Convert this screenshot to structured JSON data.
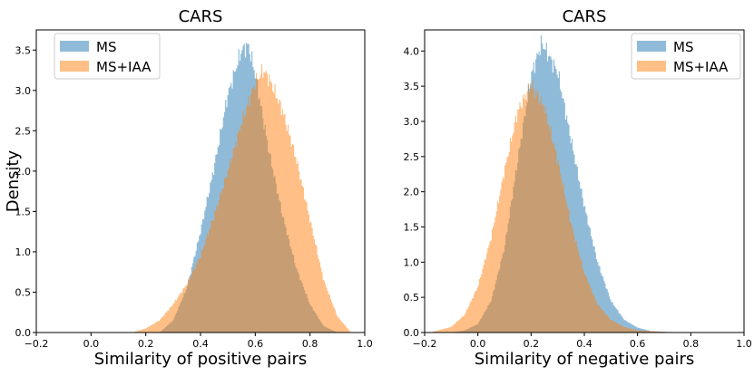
{
  "chart_data": [
    {
      "type": "histogram",
      "title": "CARS",
      "xlabel": "Similarity of positive pairs",
      "ylabel": "Density",
      "xlim": [
        -0.2,
        1.0
      ],
      "ylim": [
        0,
        3.75
      ],
      "xticks": [
        -0.2,
        0.0,
        0.2,
        0.4,
        0.6,
        0.8,
        1.0
      ],
      "xtick_labels": [
        "−0.2",
        "0.0",
        "0.2",
        "0.4",
        "0.6",
        "0.8",
        "1.0"
      ],
      "yticks": [
        0.0,
        0.5,
        1.0,
        1.5,
        2.0,
        2.5,
        3.0,
        3.5
      ],
      "ytick_labels": [
        "0.0",
        "0.5",
        "1.0",
        "1.5",
        "2.0",
        "2.5",
        "3.0",
        "3.5"
      ],
      "legend_position": "top-left",
      "series": [
        {
          "name": "MS",
          "color": "#1f77b4",
          "alpha": 0.5,
          "x": [
            0.25,
            0.3,
            0.35,
            0.4,
            0.45,
            0.5,
            0.55,
            0.575,
            0.6,
            0.65,
            0.7,
            0.75,
            0.8,
            0.85,
            0.9
          ],
          "density": [
            0.0,
            0.15,
            0.55,
            1.25,
            2.05,
            2.95,
            3.5,
            3.56,
            3.2,
            2.25,
            1.45,
            0.8,
            0.35,
            0.08,
            0.0
          ]
        },
        {
          "name": "MS+IAA",
          "color": "#ff7f0e",
          "alpha": 0.5,
          "x": [
            0.15,
            0.2,
            0.25,
            0.3,
            0.35,
            0.4,
            0.45,
            0.5,
            0.55,
            0.6,
            0.63,
            0.65,
            0.7,
            0.75,
            0.8,
            0.85,
            0.9,
            0.95
          ],
          "density": [
            0.0,
            0.05,
            0.15,
            0.35,
            0.6,
            0.95,
            1.45,
            2.0,
            2.6,
            3.1,
            3.25,
            3.15,
            2.75,
            2.15,
            1.4,
            0.65,
            0.2,
            0.0
          ]
        }
      ]
    },
    {
      "type": "histogram",
      "title": "CARS",
      "xlabel": "Similarity of negative pairs",
      "ylabel": "",
      "xlim": [
        -0.2,
        1.0
      ],
      "ylim": [
        0,
        4.3
      ],
      "xticks": [
        -0.2,
        0.0,
        0.2,
        0.4,
        0.6,
        0.8,
        1.0
      ],
      "xtick_labels": [
        "−0.2",
        "0.0",
        "0.2",
        "0.4",
        "0.6",
        "0.8",
        "1.0"
      ],
      "yticks": [
        0.0,
        0.5,
        1.0,
        1.5,
        2.0,
        2.5,
        3.0,
        3.5,
        4.0
      ],
      "ytick_labels": [
        "0.0",
        "0.5",
        "1.0",
        "1.5",
        "2.0",
        "2.5",
        "3.0",
        "3.5",
        "4.0"
      ],
      "legend_position": "top-right",
      "series": [
        {
          "name": "MS",
          "color": "#1f77b4",
          "alpha": 0.5,
          "x": [
            -0.1,
            -0.05,
            0.0,
            0.05,
            0.1,
            0.15,
            0.2,
            0.24,
            0.3,
            0.35,
            0.4,
            0.45,
            0.5,
            0.55,
            0.6,
            0.65,
            0.7,
            0.75
          ],
          "density": [
            0.0,
            0.03,
            0.12,
            0.45,
            1.2,
            2.45,
            3.65,
            4.12,
            3.7,
            2.75,
            1.8,
            1.0,
            0.45,
            0.18,
            0.07,
            0.02,
            0.01,
            0.0
          ]
        },
        {
          "name": "MS+IAA",
          "color": "#ff7f0e",
          "alpha": 0.5,
          "x": [
            -0.18,
            -0.1,
            -0.05,
            0.0,
            0.05,
            0.1,
            0.15,
            0.2,
            0.25,
            0.3,
            0.35,
            0.4,
            0.45,
            0.5,
            0.55,
            0.6,
            0.7,
            0.8
          ],
          "density": [
            0.0,
            0.08,
            0.25,
            0.65,
            1.35,
            2.3,
            3.15,
            3.52,
            3.2,
            2.45,
            1.55,
            0.85,
            0.4,
            0.18,
            0.08,
            0.03,
            0.01,
            0.0
          ]
        }
      ]
    }
  ]
}
